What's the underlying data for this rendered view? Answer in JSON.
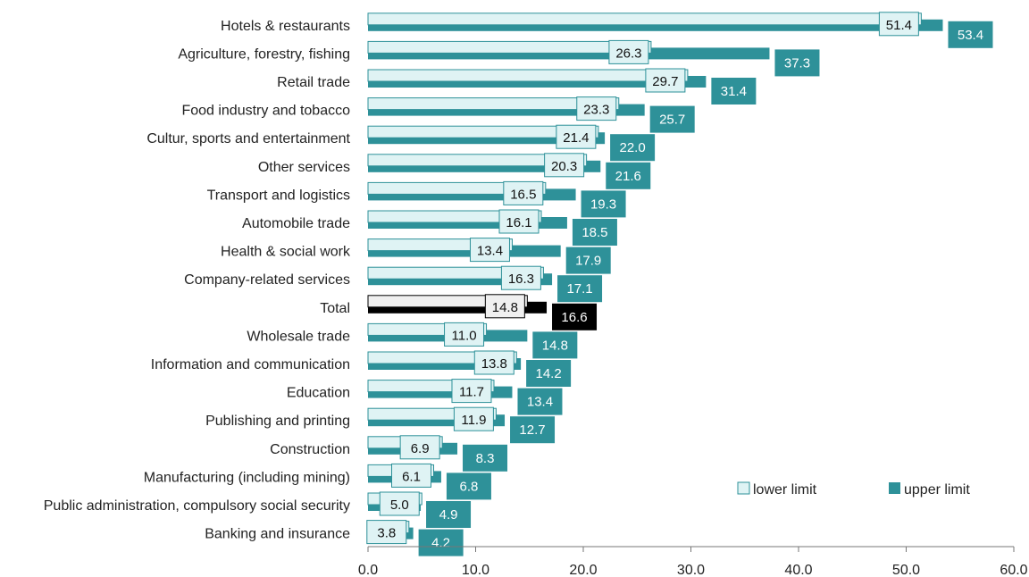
{
  "chart_data": {
    "type": "bar",
    "orientation": "horizontal",
    "categories": [
      "Hotels & restaurants",
      "Agriculture, forestry, fishing",
      "Retail trade",
      "Food industry and tobacco",
      "Cultur, sports and entertainment",
      "Other services",
      "Transport and logistics",
      "Automobile trade",
      "Health & social work",
      "Company-related services",
      "Total",
      "Wholesale trade",
      "Information and communication",
      "Education",
      "Publishing and printing",
      "Construction",
      "Manufacturing (including mining)",
      "Public administration, compulsory social security",
      "Banking and insurance"
    ],
    "series": [
      {
        "name": "lower limit",
        "color": "#dff3f4",
        "values": [
          51.4,
          26.3,
          29.7,
          23.3,
          21.4,
          20.3,
          16.5,
          16.1,
          13.4,
          16.3,
          14.8,
          11.0,
          13.8,
          11.7,
          11.9,
          6.9,
          6.1,
          5.0,
          3.8
        ]
      },
      {
        "name": "upper limit",
        "color": "#2e9199",
        "values": [
          53.4,
          37.3,
          31.4,
          25.7,
          22.0,
          21.6,
          19.3,
          18.5,
          17.9,
          17.1,
          16.6,
          14.8,
          14.2,
          13.4,
          12.7,
          8.3,
          6.8,
          4.9,
          4.2
        ]
      }
    ],
    "highlight": {
      "category": "Total",
      "lower_color": "#f0f0f0",
      "upper_color": "#000000"
    },
    "x_ticks": [
      "0.0",
      "10.0",
      "20.0",
      "30.0",
      "40.0",
      "50.0",
      "60.0"
    ],
    "xlim": [
      0,
      60
    ],
    "xlabel": "",
    "ylabel": "",
    "title": "",
    "grid": false,
    "legend_position": "bottom-right"
  }
}
